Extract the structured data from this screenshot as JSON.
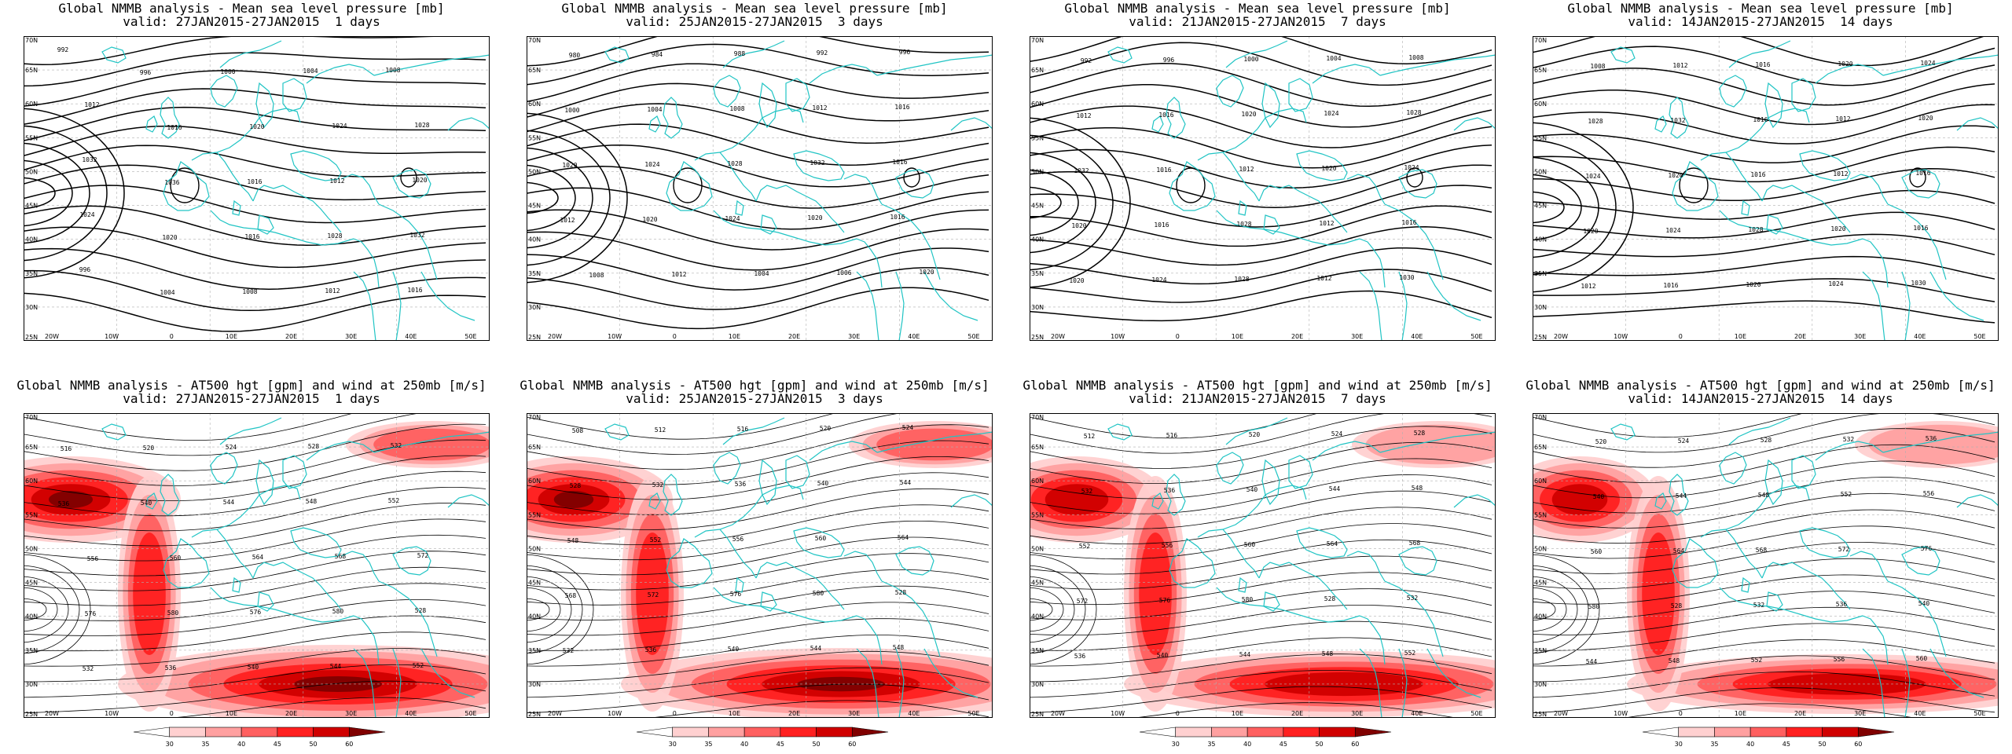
{
  "axes": {
    "lat_labels": [
      "70N",
      "65N",
      "60N",
      "55N",
      "50N",
      "45N",
      "40N",
      "35N",
      "30N",
      "25N"
    ],
    "lon_labels": [
      "20W",
      "10W",
      "0",
      "10E",
      "20E",
      "30E",
      "40E",
      "50E"
    ]
  },
  "colorbar": {
    "ticks": [
      "30",
      "35",
      "40",
      "45",
      "50",
      "60"
    ],
    "colors": [
      "#ffffff",
      "#ffd0d0",
      "#ffa0a0",
      "#ff6060",
      "#ff2020",
      "#d00000",
      "#800000"
    ]
  },
  "colors": {
    "coast": "#20c4c4",
    "contour": "#000000",
    "grid": "#b0b0b0"
  },
  "panels": [
    {
      "id": "mslp-1d",
      "title": "Global NMMB analysis - Mean sea level pressure [mb]",
      "subtitle": "valid: 27JAN2015-27JAN2015  1 days",
      "type": "mslp",
      "labels": [
        "992",
        "996",
        "1000",
        "1004",
        "1008",
        "1012",
        "1016",
        "1020",
        "1024",
        "1028",
        "1032",
        "1036",
        "1016",
        "1012",
        "1020",
        "1024",
        "1020",
        "1016",
        "1028",
        "1032",
        "996",
        "1004",
        "1008",
        "1012",
        "1016"
      ]
    },
    {
      "id": "mslp-3d",
      "title": "Global NMMB analysis - Mean sea level pressure [mb]",
      "subtitle": "valid: 25JAN2015-27JAN2015  3 days",
      "type": "mslp",
      "labels": [
        "980",
        "984",
        "988",
        "992",
        "996",
        "1000",
        "1004",
        "1008",
        "1012",
        "1016",
        "1020",
        "1024",
        "1028",
        "1032",
        "1016",
        "1012",
        "1020",
        "1024",
        "1020",
        "1016",
        "1008",
        "1012",
        "1004",
        "1006",
        "1020"
      ]
    },
    {
      "id": "mslp-7d",
      "title": "Global NMMB analysis - Mean sea level pressure [mb]",
      "subtitle": "valid: 21JAN2015-27JAN2015  7 days",
      "type": "mslp",
      "labels": [
        "992",
        "996",
        "1000",
        "1004",
        "1008",
        "1012",
        "1016",
        "1020",
        "1024",
        "1028",
        "1032",
        "1016",
        "1012",
        "1020",
        "1024",
        "1020",
        "1016",
        "1028",
        "1012",
        "1016",
        "1020",
        "1024",
        "1028",
        "1012",
        "1030"
      ]
    },
    {
      "id": "mslp-14d",
      "title": "Global NMMB analysis - Mean sea level pressure [mb]",
      "subtitle": "valid: 14JAN2015-27JAN2015  14 days",
      "type": "mslp",
      "labels": [
        "1008",
        "1012",
        "1016",
        "1020",
        "1024",
        "1028",
        "1032",
        "1016",
        "1012",
        "1020",
        "1024",
        "1020",
        "1016",
        "1012",
        "1016",
        "1020",
        "1024",
        "1028",
        "1020",
        "1016",
        "1012",
        "1016",
        "1020",
        "1024",
        "1030"
      ]
    },
    {
      "id": "at500-1d",
      "title": "Global NMMB analysis - AT500 hgt [gpm] and wind at 250mb [m/s]",
      "subtitle": "valid: 27JAN2015-27JAN2015  1 days",
      "type": "at500",
      "labels": [
        "516",
        "520",
        "524",
        "528",
        "532",
        "536",
        "540",
        "544",
        "548",
        "552",
        "556",
        "560",
        "564",
        "568",
        "572",
        "576",
        "580",
        "576",
        "580",
        "528",
        "532",
        "536",
        "540",
        "544",
        "552"
      ]
    },
    {
      "id": "at500-3d",
      "title": "Global NMMB analysis - AT500 hgt [gpm] and wind at 250mb [m/s]",
      "subtitle": "valid: 25JAN2015-27JAN2015  3 days",
      "type": "at500",
      "labels": [
        "508",
        "512",
        "516",
        "520",
        "524",
        "528",
        "532",
        "536",
        "540",
        "544",
        "548",
        "552",
        "556",
        "560",
        "564",
        "568",
        "572",
        "576",
        "580",
        "528",
        "532",
        "536",
        "540",
        "544",
        "548"
      ]
    },
    {
      "id": "at500-7d",
      "title": "Global NMMB analysis - AT500 hgt [gpm] and wind at 250mb [m/s]",
      "subtitle": "valid: 21JAN2015-27JAN2015  7 days",
      "type": "at500",
      "labels": [
        "512",
        "516",
        "520",
        "524",
        "528",
        "532",
        "536",
        "540",
        "544",
        "548",
        "552",
        "556",
        "560",
        "564",
        "568",
        "572",
        "576",
        "580",
        "528",
        "532",
        "536",
        "540",
        "544",
        "548",
        "552"
      ]
    },
    {
      "id": "at500-14d",
      "title": "Global NMMB analysis - AT500 hgt [gpm] and wind at 250mb [m/s]",
      "subtitle": "valid: 14JAN2015-27JAN2015  14 days",
      "type": "at500",
      "labels": [
        "520",
        "524",
        "528",
        "532",
        "536",
        "540",
        "544",
        "548",
        "552",
        "556",
        "560",
        "564",
        "568",
        "572",
        "576",
        "580",
        "528",
        "532",
        "536",
        "540",
        "544",
        "548",
        "552",
        "556",
        "560"
      ]
    }
  ]
}
